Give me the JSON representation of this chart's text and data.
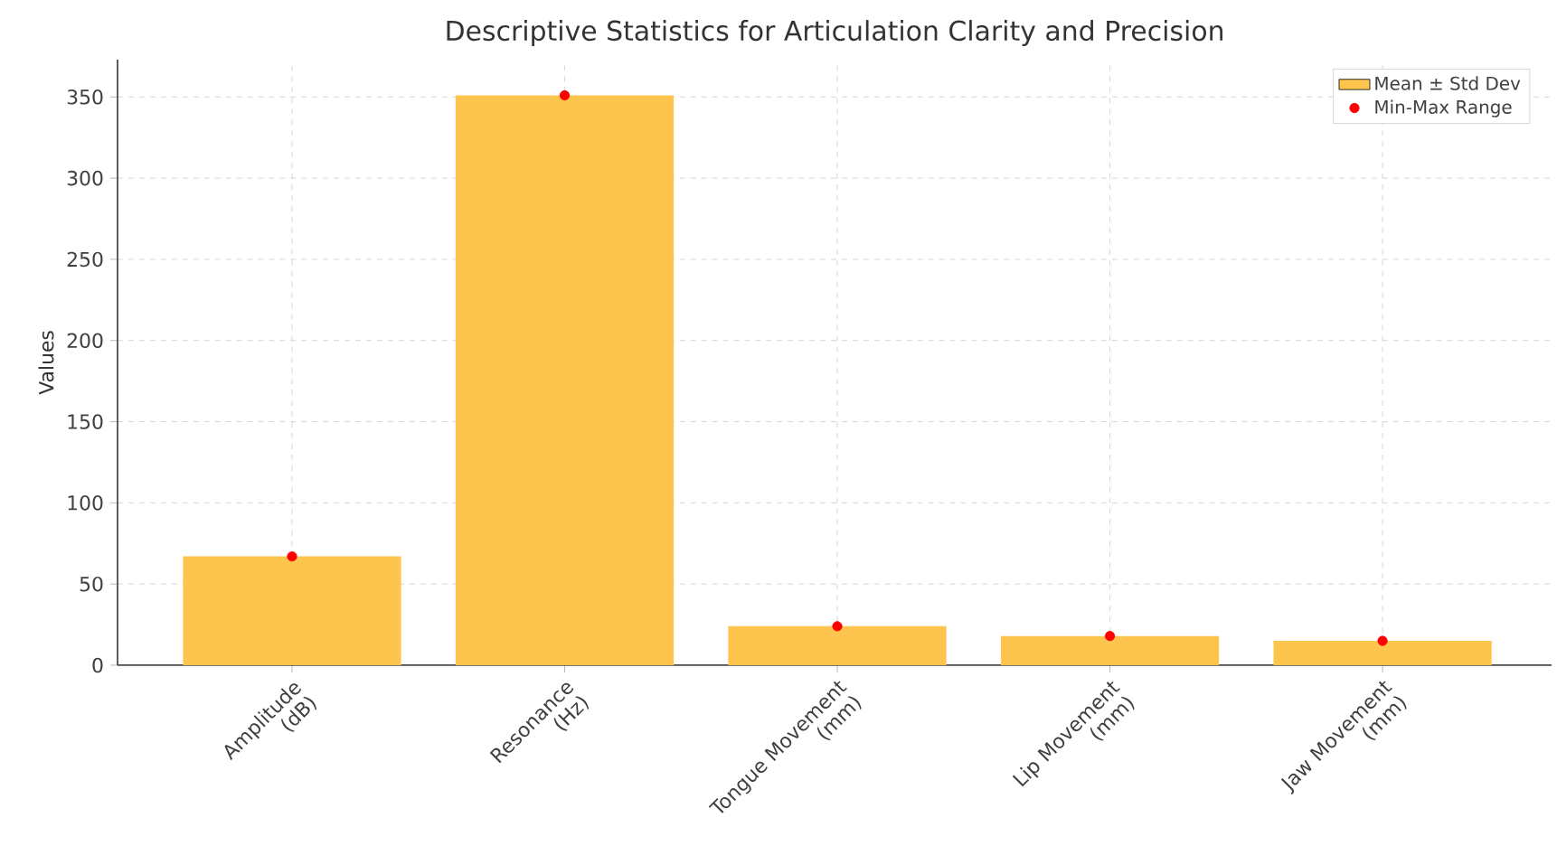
{
  "chart_data": {
    "type": "bar",
    "title": "Descriptive Statistics for Articulation Clarity and Precision",
    "ylabel": "Values",
    "categories": [
      "Amplitude (dB)",
      "Resonance (Hz)",
      "Tongue Movement (mm)",
      "Lip Movement (mm)",
      "Jaw Movement (mm)"
    ],
    "series": [
      {
        "name": "Mean ± Std Dev",
        "color": "#fdc44e",
        "values": [
          67,
          351,
          24,
          18,
          15
        ]
      },
      {
        "name": "Min-Max Range",
        "type": "scatter",
        "color": "#ff0000",
        "x": [
          "Amplitude (dB)",
          "Resonance (Hz)",
          "Tongue Movement (mm)",
          "Lip Movement (mm)",
          "Jaw Movement (mm)"
        ],
        "values": [
          67,
          351,
          24,
          18,
          15
        ]
      }
    ],
    "ylim": [
      0,
      373
    ],
    "yticks": [
      0,
      50,
      100,
      150,
      200,
      250,
      300,
      350
    ],
    "grid": true,
    "legend": "top right"
  }
}
